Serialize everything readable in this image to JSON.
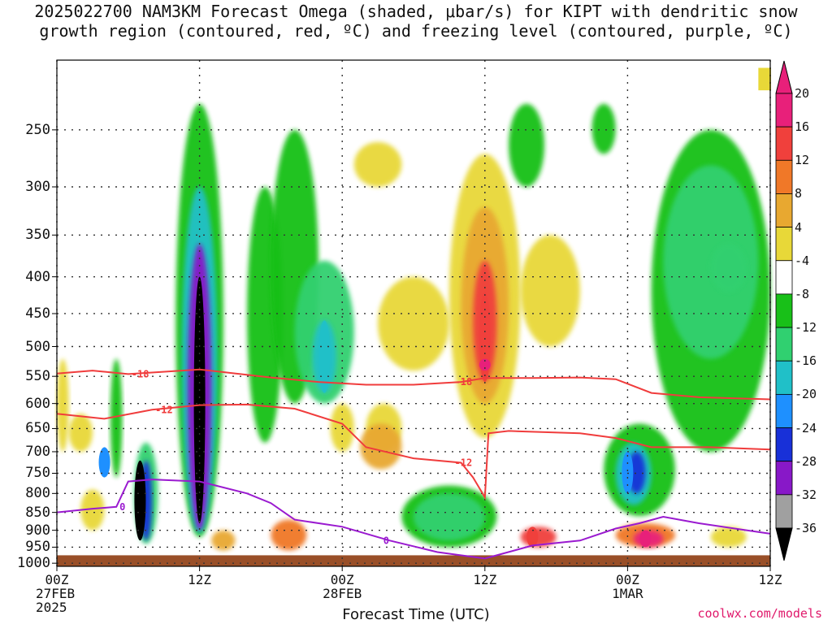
{
  "title_line1": "2025022700 NAM3KM Forecast Omega (shaded, μbar/s) for KIPT with dendritic snow",
  "title_line2": "growth region (contoured, red, ºC) and freezing level (contoured, purple, ºC)",
  "credit": "coolwx.com/models",
  "chart_data": {
    "type": "heatmap",
    "xlabel": "Forecast Time (UTC)",
    "ylabel": "",
    "x_ticks": [
      {
        "hour": 0,
        "label": "00Z",
        "sub": [
          "27FEB",
          "2025"
        ]
      },
      {
        "hour": 12,
        "label": "12Z",
        "sub": []
      },
      {
        "hour": 24,
        "label": "00Z",
        "sub": [
          "28FEB"
        ]
      },
      {
        "hour": 36,
        "label": "12Z",
        "sub": []
      },
      {
        "hour": 48,
        "label": "00Z",
        "sub": [
          "1MAR"
        ]
      },
      {
        "hour": 60,
        "label": "12Z",
        "sub": []
      }
    ],
    "xlim_hours": [
      0,
      60
    ],
    "y_pressure_hpa": [
      250,
      300,
      350,
      400,
      450,
      500,
      550,
      600,
      650,
      700,
      750,
      800,
      850,
      900,
      950,
      1000
    ],
    "ylim_hpa": [
      200,
      1010
    ],
    "grid": true,
    "colorbar": {
      "labels": [
        "20",
        "16",
        "12",
        "8",
        "4",
        "-4",
        "-8",
        "-12",
        "-16",
        "-20",
        "-24",
        "-28",
        "-32",
        "-36"
      ],
      "colors": [
        "#e8207a",
        "#f0403c",
        "#f07828",
        "#e8a830",
        "#e8d838",
        "#ffffff",
        "#18c018",
        "#30d070",
        "#20c0c8",
        "#1e90ff",
        "#1830d8",
        "#8818c8",
        "#a0a0a0",
        "#000000"
      ]
    },
    "omega_features": [
      {
        "hour": 12,
        "p": [
          400,
          880
        ],
        "value": -36
      },
      {
        "hour": 7,
        "p": [
          720,
          930
        ],
        "value": -36
      },
      {
        "hour": 4,
        "p": [
          690,
          760
        ],
        "value": -20
      },
      {
        "hour": 22.5,
        "p": [
          460,
          580
        ],
        "value": -16
      },
      {
        "hour": 36,
        "p": [
          420,
          560
        ],
        "value": 16
      },
      {
        "hour": 36,
        "p": [
          520,
          540
        ],
        "value": 20
      },
      {
        "hour": 49.5,
        "p": [
          900,
          950
        ],
        "value": 20
      },
      {
        "hour": 40,
        "p": [
          890,
          950
        ],
        "value": 16
      },
      {
        "hour": 48,
        "p": [
          700,
          800
        ],
        "value": -20
      }
    ],
    "series": [
      {
        "name": "-18",
        "color": "#f03c3c",
        "points": [
          [
            0,
            545
          ],
          [
            3,
            540
          ],
          [
            6,
            546
          ],
          [
            12,
            538
          ],
          [
            18,
            552
          ],
          [
            22,
            560
          ],
          [
            26,
            565
          ],
          [
            30,
            565
          ],
          [
            34,
            560
          ],
          [
            36,
            553
          ],
          [
            40,
            553
          ],
          [
            44,
            552
          ],
          [
            47,
            555
          ],
          [
            50,
            580
          ],
          [
            54,
            588
          ],
          [
            60,
            592
          ]
        ]
      },
      {
        "name": "-12",
        "color": "#f03c3c",
        "points": [
          [
            0,
            620
          ],
          [
            4,
            630
          ],
          [
            8,
            612
          ],
          [
            12,
            603
          ],
          [
            16,
            602
          ],
          [
            20,
            610
          ],
          [
            24,
            640
          ],
          [
            26,
            690
          ],
          [
            30,
            715
          ],
          [
            34,
            725
          ],
          [
            35,
            760
          ],
          [
            36,
            810
          ],
          [
            36.3,
            660
          ],
          [
            38,
            655
          ],
          [
            44,
            660
          ],
          [
            47,
            670
          ],
          [
            50,
            690
          ],
          [
            55,
            690
          ],
          [
            60,
            695
          ]
        ]
      },
      {
        "name": "0",
        "color": "#9a1ad0",
        "points": [
          [
            0,
            850
          ],
          [
            3,
            840
          ],
          [
            5,
            835
          ],
          [
            6,
            770
          ],
          [
            8,
            765
          ],
          [
            12,
            770
          ],
          [
            16,
            800
          ],
          [
            18,
            825
          ],
          [
            20,
            870
          ],
          [
            24,
            890
          ],
          [
            28,
            930
          ],
          [
            32,
            965
          ],
          [
            36,
            985
          ],
          [
            40,
            945
          ],
          [
            44,
            930
          ],
          [
            47,
            895
          ],
          [
            49,
            880
          ],
          [
            51,
            862
          ],
          [
            54,
            880
          ],
          [
            58,
            900
          ],
          [
            60,
            910
          ]
        ]
      }
    ],
    "terrain_color": "#994f28"
  }
}
